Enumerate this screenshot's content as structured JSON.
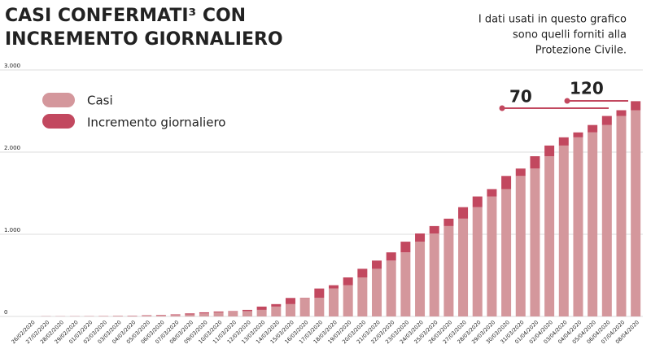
{
  "chart_data": {
    "type": "stacked_bar",
    "title": [
      "CASI CONFERMATI³ CON",
      "INCREMENTO GIORNALIERO"
    ],
    "note": [
      "I dati usati in questo grafico",
      "sono quelli forniti alla",
      "Protezione Civile."
    ],
    "categories": [
      "26/02/2020",
      "27/02/2020",
      "28/02/2020",
      "29/02/2020",
      "01/03/2020",
      "02/03/2020",
      "03/03/2020",
      "04/03/2020",
      "05/03/2020",
      "06/03/2020",
      "07/03/2020",
      "08/03/2020",
      "09/03/2020",
      "10/03/2020",
      "11/03/2020",
      "12/03/2020",
      "13/03/2020",
      "14/03/2020",
      "15/03/2020",
      "16/03/2020",
      "17/03/2020",
      "18/03/2020",
      "19/03/2020",
      "20/03/2020",
      "21/03/2020",
      "22/03/2020",
      "23/03/2020",
      "24/03/2020",
      "25/03/2020",
      "26/03/2020",
      "27/03/2020",
      "28/03/2020",
      "29/03/2020",
      "30/03/2020",
      "31/03/2020",
      "01/04/2020",
      "02/04/2020",
      "03/04/2020",
      "04/04/2020",
      "05/04/2020",
      "06/04/2020",
      "07/04/2020",
      "08/04/2020"
    ],
    "series": [
      {
        "name": "Casi",
        "color": "#d4979c",
        "values": [
          0,
          0,
          2,
          3,
          4,
          5,
          6,
          8,
          10,
          14,
          18,
          25,
          37,
          50,
          60,
          65,
          80,
          120,
          150,
          225,
          228,
          340,
          380,
          475,
          580,
          680,
          780,
          910,
          1010,
          1100,
          1190,
          1330,
          1460,
          1550,
          1710,
          1800,
          1950,
          2080,
          2180,
          2240,
          2330,
          2440,
          2510
        ]
      },
      {
        "name": "Incremento giornaliero",
        "color": "#c2485f",
        "values": [
          0,
          2,
          1,
          1,
          1,
          1,
          2,
          2,
          4,
          4,
          7,
          12,
          13,
          10,
          5,
          15,
          40,
          30,
          75,
          3,
          112,
          40,
          95,
          105,
          100,
          100,
          130,
          100,
          90,
          90,
          140,
          130,
          90,
          160,
          90,
          150,
          130,
          100,
          60,
          90,
          110,
          70,
          110
        ]
      }
    ],
    "ylim": [
      0,
      3000
    ],
    "yticks": [
      0,
      {
        "value": 1000,
        "label": "1.000"
      },
      {
        "value": 2000,
        "label": "2.000"
      },
      {
        "value": 3000,
        "label": "3.000"
      }
    ],
    "grid": true,
    "annotations": [
      {
        "text": "70"
      },
      {
        "text": "120"
      }
    ]
  }
}
